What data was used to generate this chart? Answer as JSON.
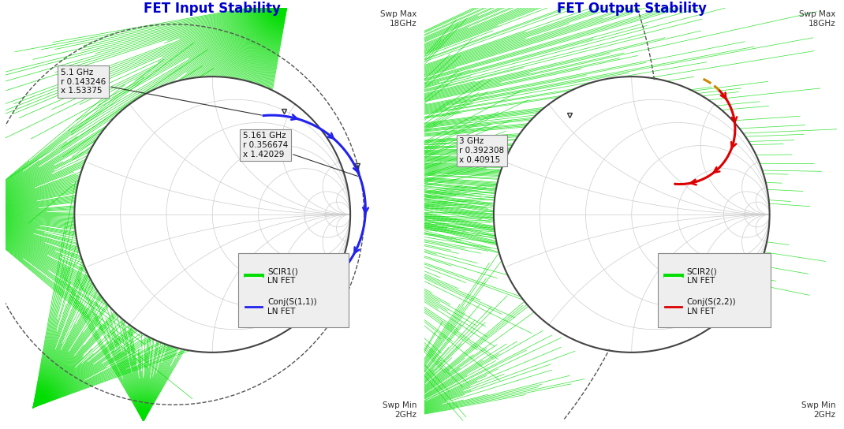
{
  "left_title": "FET Input Stability",
  "right_title": "FET Output Stability",
  "bg_color": "#ffffff",
  "title_color": "#0000cc",
  "smith_circle_color": "#444444",
  "smith_grid_color": "#cccccc",
  "green_color": "#00dd00",
  "dashed_color": "#555555",
  "blue_color": "#2222ee",
  "red_color": "#dd0000",
  "orange_color": "#cc8800",
  "ann_face": "#eeeeee",
  "ann_edge": "#888888",
  "swp_max": "Swp Max\n18GHz",
  "swp_min": "Swp Min\n2GHz",
  "left_ann1": "5.1 GHz\nr 0.143246\nx 1.53375",
  "left_ann2": "5.161 GHz\nr 0.356674\nx 1.42029",
  "right_ann1": "3 GHz\nr 0.392308\nx 0.40915",
  "left_leg1": "SCIR1()\nLN FET",
  "left_leg2": "Conj(S(1,1))\nLN FET",
  "right_leg1": "SCIR2()\nLN FET",
  "right_leg2": "Conj(S(2,2))\nLN FET"
}
